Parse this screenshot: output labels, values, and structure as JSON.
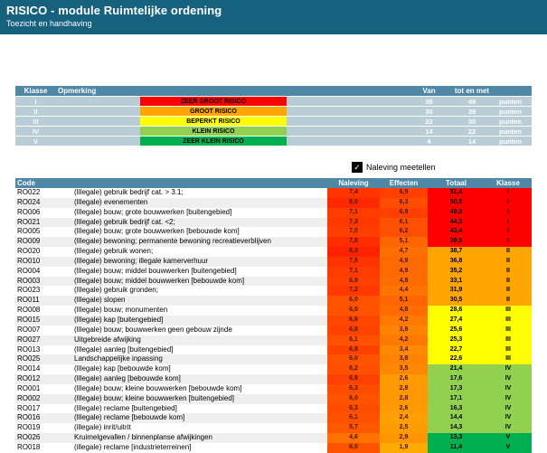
{
  "header": {
    "title": "RISICO - module Ruimtelijke ordening",
    "subtitle": "Toezicht en handhaving"
  },
  "colors": {
    "titlebar_bg": "#16617E",
    "table_header_bg": "#4E88A6",
    "legend_row_bg": "#B9CDD7"
  },
  "legend": {
    "headers": {
      "klasse": "Klasse",
      "opmerking": "Opmerking",
      "van": "Van",
      "tot": "tot en met"
    },
    "rows": [
      {
        "klasse": "I",
        "label": "ZEER GROOT RISICO",
        "color": "#FF0000",
        "van": "39",
        "tot": "49",
        "unit": "punten"
      },
      {
        "klasse": "II",
        "label": "GROOT RISICO",
        "color": "#FFA500",
        "van": "30",
        "tot": "39",
        "unit": "punten"
      },
      {
        "klasse": "III",
        "label": "BEPERKT RISICO",
        "color": "#FFFF00",
        "van": "22",
        "tot": "30",
        "unit": "punten"
      },
      {
        "klasse": "IV",
        "label": "KLEIN RISICO",
        "color": "#92D050",
        "van": "14",
        "tot": "22",
        "unit": "punten"
      },
      {
        "klasse": "V",
        "label": "ZEER KLEIN RISICO",
        "color": "#00B050",
        "van": "4",
        "tot": "14",
        "unit": "punten"
      }
    ]
  },
  "checkbox": {
    "label": "Naleving meetellen",
    "checked": true,
    "checkmark": "✓"
  },
  "table": {
    "headers": {
      "code": "Code",
      "naleving": "Naleving",
      "effecten": "Effecten",
      "totaal": "Totaal",
      "klasse": "Klasse"
    },
    "class_colors": {
      "I": "#FF0000",
      "II": "#FFA500",
      "III": "#FFFF00",
      "IV": "#92D050",
      "V": "#00B050"
    },
    "heat_scale": {
      "min": 1.9,
      "max": 8.3,
      "hue_at_min": 40,
      "hue_at_max": 8
    },
    "rows": [
      {
        "code": "RO022",
        "omschrijving": "(Illegale) gebruik bedrijf cat. > 3.1;",
        "naleving": "7,4",
        "effecten": "6,9",
        "totaal": "51,4",
        "klasse": "I"
      },
      {
        "code": "RO024",
        "omschrijving": "(Illegale) evenementen",
        "naleving": "8,0",
        "effecten": "6,3",
        "totaal": "50,5",
        "klasse": "I"
      },
      {
        "code": "RO006",
        "omschrijving": "(Illegale) bouw; grote bouwwerken [buitengebied]",
        "naleving": "7,1",
        "effecten": "6,9",
        "totaal": "49,9",
        "klasse": "I"
      },
      {
        "code": "RO021",
        "omschrijving": "(Illegale) gebruik bedrijf cat. <2;",
        "naleving": "7,3",
        "effecten": "6,1",
        "totaal": "44,3",
        "klasse": "I"
      },
      {
        "code": "RO005",
        "omschrijving": "(Illegale) bouw; grote bouwwerken [bebouwde kom]",
        "naleving": "7,0",
        "effecten": "6,2",
        "totaal": "43,4",
        "klasse": "I"
      },
      {
        "code": "RO009",
        "omschrijving": "(Illegale) bewoning; permanente bewoning recreatieverblijven",
        "naleving": "7,8",
        "effecten": "5,1",
        "totaal": "39,9",
        "klasse": "I"
      },
      {
        "code": "RO020",
        "omschrijving": "(Illegale) gebruik wonen;",
        "naleving": "8,3",
        "effecten": "4,7",
        "totaal": "38,7",
        "klasse": "II"
      },
      {
        "code": "RO010",
        "omschrijving": "(Illegale) bewoning; illegale kamerverhuur",
        "naleving": "7,5",
        "effecten": "4,9",
        "totaal": "36,8",
        "klasse": "II"
      },
      {
        "code": "RO004",
        "omschrijving": "(Illegale) bouw; middel bouwwerken [buitengebied]",
        "naleving": "7,1",
        "effecten": "4,9",
        "totaal": "35,2",
        "klasse": "II"
      },
      {
        "code": "RO003",
        "omschrijving": "(Illegale) bouw; middel bouwwerken [bebouwde kom]",
        "naleving": "6,9",
        "effecten": "4,8",
        "totaal": "33,1",
        "klasse": "II"
      },
      {
        "code": "RO023",
        "omschrijving": "(Illegale) gebruik gronden;",
        "naleving": "7,2",
        "effecten": "4,4",
        "totaal": "31,9",
        "klasse": "II"
      },
      {
        "code": "RO011",
        "omschrijving": "(Illegale) slopen",
        "naleving": "6,0",
        "effecten": "5,1",
        "totaal": "30,5",
        "klasse": "II"
      },
      {
        "code": "RO008",
        "omschrijving": "(Illegale) bouw; monumenten",
        "naleving": "6,0",
        "effecten": "4,8",
        "totaal": "28,6",
        "klasse": "III"
      },
      {
        "code": "RO015",
        "omschrijving": "(Illegale) kap [buitengebied]",
        "naleving": "6,6",
        "effecten": "4,2",
        "totaal": "27,4",
        "klasse": "III"
      },
      {
        "code": "RO007",
        "omschrijving": "(Illegale) bouw; bouwwerken geen gebouw zijnde",
        "naleving": "6,8",
        "effecten": "3,8",
        "totaal": "25,6",
        "klasse": "III"
      },
      {
        "code": "RO027",
        "omschrijving": "Uitgebreide afwijking",
        "naleving": "6,1",
        "effecten": "4,2",
        "totaal": "25,3",
        "klasse": "III"
      },
      {
        "code": "RO013",
        "omschrijving": "(Illegale) aanleg [buitengebied]",
        "naleving": "6,8",
        "effecten": "3,4",
        "totaal": "22,7",
        "klasse": "III"
      },
      {
        "code": "RO025",
        "omschrijving": "Landschappelijke inpassing",
        "naleving": "6,0",
        "effecten": "3,8",
        "totaal": "22,6",
        "klasse": "III"
      },
      {
        "code": "RO014",
        "omschrijving": "(Illegale) kap [bebouwde kom]",
        "naleving": "6,2",
        "effecten": "3,5",
        "totaal": "21,4",
        "klasse": "IV"
      },
      {
        "code": "RO012",
        "omschrijving": "(Illegale) aanleg [bebouwde kom]",
        "naleving": "6,9",
        "effecten": "2,6",
        "totaal": "17,6",
        "klasse": "IV"
      },
      {
        "code": "RO001",
        "omschrijving": "(Illegale) bouw; kleine bouwwerken [bebouwde kom]",
        "naleving": "6,3",
        "effecten": "2,8",
        "totaal": "17,3",
        "klasse": "IV"
      },
      {
        "code": "RO002",
        "omschrijving": "(Illegale) bouw; kleine bouwwerken [buitengebied]",
        "naleving": "6,0",
        "effecten": "2,8",
        "totaal": "17,1",
        "klasse": "IV"
      },
      {
        "code": "RO017",
        "omschrijving": "(Illegale) reclame [buitengebied]",
        "naleving": "6,3",
        "effecten": "2,6",
        "totaal": "16,3",
        "klasse": "IV"
      },
      {
        "code": "RO016",
        "omschrijving": "(Illegale) reclame [bebouwde kom]",
        "naleving": "6,1",
        "effecten": "2,4",
        "totaal": "14,4",
        "klasse": "IV"
      },
      {
        "code": "RO019",
        "omschrijving": "(illegale) inrit/uitrit",
        "naleving": "5,7",
        "effecten": "2,5",
        "totaal": "14,3",
        "klasse": "IV"
      },
      {
        "code": "RO026",
        "omschrijving": "Kruimelgevallen / binnenplanse afwijkingen",
        "naleving": "4,6",
        "effecten": "2,9",
        "totaal": "13,3",
        "klasse": "V"
      },
      {
        "code": "RO018",
        "omschrijving": "(illegale) reclame [industrieterreinen]",
        "naleving": "6,0",
        "effecten": "1,9",
        "totaal": "11,4",
        "klasse": "V"
      }
    ]
  }
}
